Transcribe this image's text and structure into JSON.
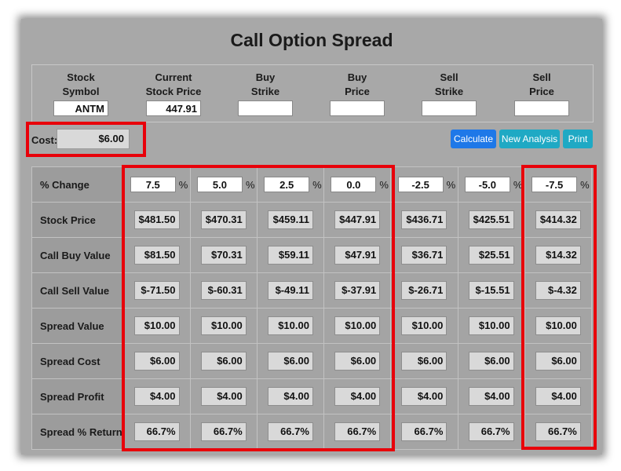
{
  "title": "Call Option Spread",
  "inputs": [
    {
      "label": "Stock\nSymbol",
      "value": "ANTM"
    },
    {
      "label": "Current\nStock Price",
      "value": "447.91"
    },
    {
      "label": "Buy\nStrike",
      "value": ""
    },
    {
      "label": "Buy\nPrice",
      "value": ""
    },
    {
      "label": "Sell\nStrike",
      "value": ""
    },
    {
      "label": "Sell\nPrice",
      "value": ""
    }
  ],
  "cost": {
    "label": "Cost:",
    "value": "$6.00"
  },
  "buttons": {
    "calculate": "Calculate",
    "new_analysis": "New Analysis",
    "print": "Print"
  },
  "percent_sign": "%",
  "table": {
    "pct_change_label": "% Change",
    "pct_changes": [
      "7.5",
      "5.0",
      "2.5",
      "0.0",
      "-2.5",
      "-5.0",
      "-7.5"
    ],
    "rows": [
      {
        "label": "Stock Price",
        "values": [
          "$481.50",
          "$470.31",
          "$459.11",
          "$447.91",
          "$436.71",
          "$425.51",
          "$414.32"
        ]
      },
      {
        "label": "Call Buy Value",
        "values": [
          "$81.50",
          "$70.31",
          "$59.11",
          "$47.91",
          "$36.71",
          "$25.51",
          "$14.32"
        ]
      },
      {
        "label": "Call Sell Value",
        "values": [
          "$-71.50",
          "$-60.31",
          "$-49.11",
          "$-37.91",
          "$-26.71",
          "$-15.51",
          "$-4.32"
        ]
      },
      {
        "label": "Spread Value",
        "values": [
          "$10.00",
          "$10.00",
          "$10.00",
          "$10.00",
          "$10.00",
          "$10.00",
          "$10.00"
        ]
      },
      {
        "label": "Spread Cost",
        "values": [
          "$6.00",
          "$6.00",
          "$6.00",
          "$6.00",
          "$6.00",
          "$6.00",
          "$6.00"
        ]
      },
      {
        "label": "Spread Profit",
        "values": [
          "$4.00",
          "$4.00",
          "$4.00",
          "$4.00",
          "$4.00",
          "$4.00",
          "$4.00"
        ]
      },
      {
        "label": "Spread % Return",
        "values": [
          "66.7%",
          "66.7%",
          "66.7%",
          "66.7%",
          "66.7%",
          "66.7%",
          "66.7%"
        ]
      }
    ]
  },
  "colors": {
    "highlight": "#e8000a",
    "calculate_button": "#1e78e8",
    "secondary_button": "#1fa9c4"
  }
}
